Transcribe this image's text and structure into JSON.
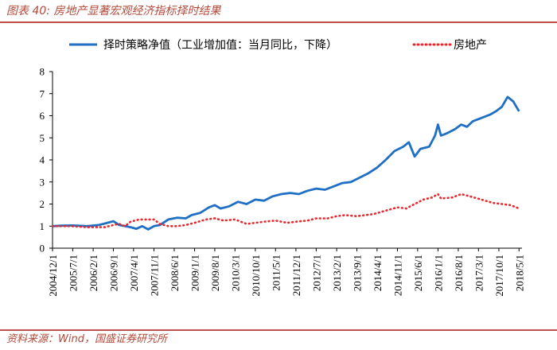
{
  "header": {
    "title": "图表 40:  房地产显著宏观经济指标择时结果"
  },
  "footer": {
    "source": "资料来源：Wind，国盛证券研究所"
  },
  "colors": {
    "accent": "#c0504d",
    "series_blue": "#1f6fc5",
    "series_red": "#e8262b"
  },
  "chart_data": {
    "type": "line",
    "ylim": [
      0,
      8
    ],
    "yticks": [
      0,
      1,
      2,
      3,
      4,
      5,
      6,
      7,
      8
    ],
    "grid": false,
    "legend_position": "top",
    "x_tick_labels": [
      "2004/12/1",
      "2005/7/1",
      "2006/2/1",
      "2006/9/1",
      "2007/4/1",
      "2007/11/1",
      "2008/6/1",
      "2009/1/1",
      "2009/8/1",
      "2010/3/1",
      "2010/10/1",
      "2011/5/1",
      "2011/12/1",
      "2012/7/1",
      "2013/2/1",
      "2013/9/1",
      "2014/4/1",
      "2014/11/1",
      "2015/6/1",
      "2016/1/1",
      "2016/8/1",
      "2017/3/1",
      "2017/10/1",
      "2018/5/1"
    ],
    "x_range": [
      "2004/12/1",
      "2018/6/1"
    ],
    "series": [
      {
        "name": "择时策略净值（工业增加值：当月同比，下降）",
        "style": "solid",
        "points": [
          [
            "2004/12/1",
            1.0
          ],
          [
            "2005/3/1",
            1.02
          ],
          [
            "2005/7/1",
            1.03
          ],
          [
            "2005/12/1",
            1.0
          ],
          [
            "2006/4/1",
            1.05
          ],
          [
            "2006/7/1",
            1.15
          ],
          [
            "2006/9/1",
            1.22
          ],
          [
            "2006/11/1",
            1.05
          ],
          [
            "2007/1/1",
            1.0
          ],
          [
            "2007/3/1",
            0.95
          ],
          [
            "2007/5/1",
            0.88
          ],
          [
            "2007/7/1",
            1.0
          ],
          [
            "2007/9/1",
            0.85
          ],
          [
            "2007/11/1",
            1.0
          ],
          [
            "2008/1/1",
            1.05
          ],
          [
            "2008/4/1",
            1.3
          ],
          [
            "2008/7/1",
            1.38
          ],
          [
            "2008/10/1",
            1.35
          ],
          [
            "2008/12/1",
            1.5
          ],
          [
            "2009/3/1",
            1.6
          ],
          [
            "2009/6/1",
            1.85
          ],
          [
            "2009/8/1",
            1.95
          ],
          [
            "2009/10/1",
            1.8
          ],
          [
            "2010/1/1",
            1.9
          ],
          [
            "2010/4/1",
            2.1
          ],
          [
            "2010/7/1",
            2.0
          ],
          [
            "2010/10/1",
            2.2
          ],
          [
            "2011/1/1",
            2.15
          ],
          [
            "2011/4/1",
            2.35
          ],
          [
            "2011/7/1",
            2.45
          ],
          [
            "2011/10/1",
            2.5
          ],
          [
            "2012/1/1",
            2.45
          ],
          [
            "2012/4/1",
            2.6
          ],
          [
            "2012/7/1",
            2.7
          ],
          [
            "2012/10/1",
            2.65
          ],
          [
            "2013/1/1",
            2.8
          ],
          [
            "2013/4/1",
            2.95
          ],
          [
            "2013/7/1",
            3.0
          ],
          [
            "2013/10/1",
            3.2
          ],
          [
            "2014/1/1",
            3.4
          ],
          [
            "2014/4/1",
            3.65
          ],
          [
            "2014/7/1",
            4.0
          ],
          [
            "2014/10/1",
            4.4
          ],
          [
            "2015/1/1",
            4.6
          ],
          [
            "2015/3/1",
            4.8
          ],
          [
            "2015/5/1",
            4.15
          ],
          [
            "2015/7/1",
            4.5
          ],
          [
            "2015/10/1",
            4.6
          ],
          [
            "2015/12/1",
            5.1
          ],
          [
            "2016/1/1",
            5.6
          ],
          [
            "2016/2/1",
            5.1
          ],
          [
            "2016/4/1",
            5.2
          ],
          [
            "2016/7/1",
            5.4
          ],
          [
            "2016/9/1",
            5.6
          ],
          [
            "2016/11/1",
            5.5
          ],
          [
            "2017/1/1",
            5.75
          ],
          [
            "2017/4/1",
            5.9
          ],
          [
            "2017/7/1",
            6.05
          ],
          [
            "2017/9/1",
            6.2
          ],
          [
            "2017/11/1",
            6.4
          ],
          [
            "2018/1/1",
            6.85
          ],
          [
            "2018/3/1",
            6.65
          ],
          [
            "2018/5/1",
            6.2
          ]
        ]
      },
      {
        "name": "房地产",
        "style": "dotted",
        "points": [
          [
            "2004/12/1",
            1.0
          ],
          [
            "2005/6/1",
            1.0
          ],
          [
            "2005/12/1",
            0.95
          ],
          [
            "2006/6/1",
            0.95
          ],
          [
            "2006/9/1",
            1.05
          ],
          [
            "2006/11/1",
            1.1
          ],
          [
            "2007/1/1",
            1.0
          ],
          [
            "2007/3/1",
            1.2
          ],
          [
            "2007/6/1",
            1.3
          ],
          [
            "2007/9/1",
            1.3
          ],
          [
            "2007/11/1",
            1.3
          ],
          [
            "2008/1/1",
            1.1
          ],
          [
            "2008/4/1",
            1.0
          ],
          [
            "2008/7/1",
            1.0
          ],
          [
            "2008/10/1",
            1.05
          ],
          [
            "2009/1/1",
            1.15
          ],
          [
            "2009/5/1",
            1.3
          ],
          [
            "2009/8/1",
            1.35
          ],
          [
            "2009/11/1",
            1.25
          ],
          [
            "2010/3/1",
            1.3
          ],
          [
            "2010/7/1",
            1.1
          ],
          [
            "2010/10/1",
            1.15
          ],
          [
            "2011/1/1",
            1.2
          ],
          [
            "2011/5/1",
            1.25
          ],
          [
            "2011/9/1",
            1.15
          ],
          [
            "2011/12/1",
            1.2
          ],
          [
            "2012/4/1",
            1.25
          ],
          [
            "2012/7/1",
            1.35
          ],
          [
            "2012/11/1",
            1.35
          ],
          [
            "2013/2/1",
            1.45
          ],
          [
            "2013/5/1",
            1.5
          ],
          [
            "2013/9/1",
            1.45
          ],
          [
            "2013/12/1",
            1.5
          ],
          [
            "2014/3/1",
            1.55
          ],
          [
            "2014/7/1",
            1.7
          ],
          [
            "2014/11/1",
            1.85
          ],
          [
            "2015/2/1",
            1.8
          ],
          [
            "2015/5/1",
            2.0
          ],
          [
            "2015/8/1",
            2.2
          ],
          [
            "2015/11/1",
            2.3
          ],
          [
            "2016/1/1",
            2.45
          ],
          [
            "2016/2/1",
            2.25
          ],
          [
            "2016/6/1",
            2.3
          ],
          [
            "2016/9/1",
            2.45
          ],
          [
            "2016/12/1",
            2.35
          ],
          [
            "2017/4/1",
            2.2
          ],
          [
            "2017/8/1",
            2.05
          ],
          [
            "2017/11/1",
            2.0
          ],
          [
            "2018/2/1",
            1.95
          ],
          [
            "2018/5/1",
            1.8
          ]
        ]
      }
    ]
  }
}
